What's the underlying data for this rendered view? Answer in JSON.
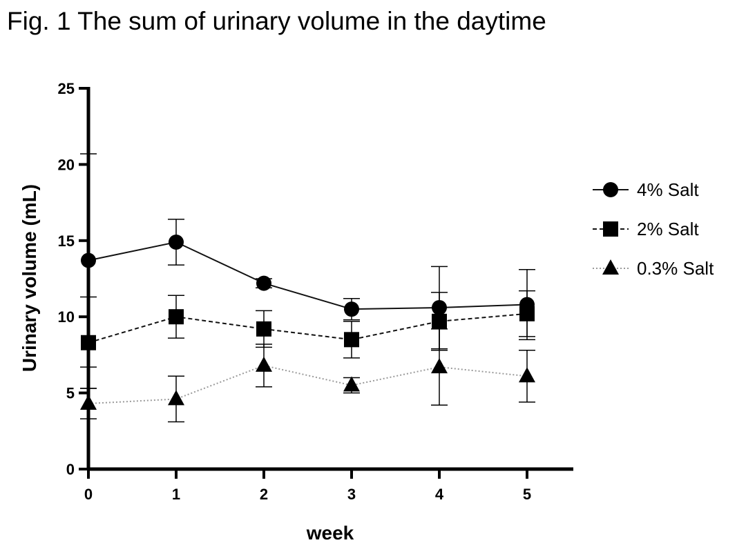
{
  "figure": {
    "title": "Fig. 1  The sum of urinary volume in the daytime"
  },
  "chart_data": {
    "type": "line",
    "title": "Fig. 1  The sum of urinary volume in the daytime",
    "xlabel": "week",
    "ylabel": "Urinary volume (mL)",
    "x": [
      0,
      1,
      2,
      3,
      4,
      5
    ],
    "xlim": [
      0,
      5.5
    ],
    "ylim": [
      0,
      25
    ],
    "xticks": [
      "0",
      "1",
      "2",
      "3",
      "4",
      "5"
    ],
    "yticks": [
      "0",
      "5",
      "10",
      "15",
      "20",
      "25"
    ],
    "grid": false,
    "legend_position": "right",
    "series": [
      {
        "name": "4% Salt",
        "marker": "circle",
        "line_style": "solid",
        "values": [
          13.7,
          14.9,
          12.2,
          10.5,
          10.6,
          10.8
        ],
        "error": [
          7.0,
          1.5,
          0.3,
          0.7,
          2.7,
          2.3
        ]
      },
      {
        "name": "2% Salt",
        "marker": "square",
        "line_style": "dashed",
        "values": [
          8.3,
          10.0,
          9.2,
          8.5,
          9.7,
          10.2
        ],
        "error": [
          3.0,
          1.4,
          1.2,
          1.2,
          1.9,
          1.5
        ]
      },
      {
        "name": "0.3% Salt",
        "marker": "triangle",
        "line_style": "dotted",
        "values": [
          4.3,
          4.6,
          6.8,
          5.5,
          6.7,
          6.1
        ],
        "error": [
          1.0,
          1.5,
          1.4,
          0.5,
          2.5,
          1.7
        ]
      }
    ]
  }
}
